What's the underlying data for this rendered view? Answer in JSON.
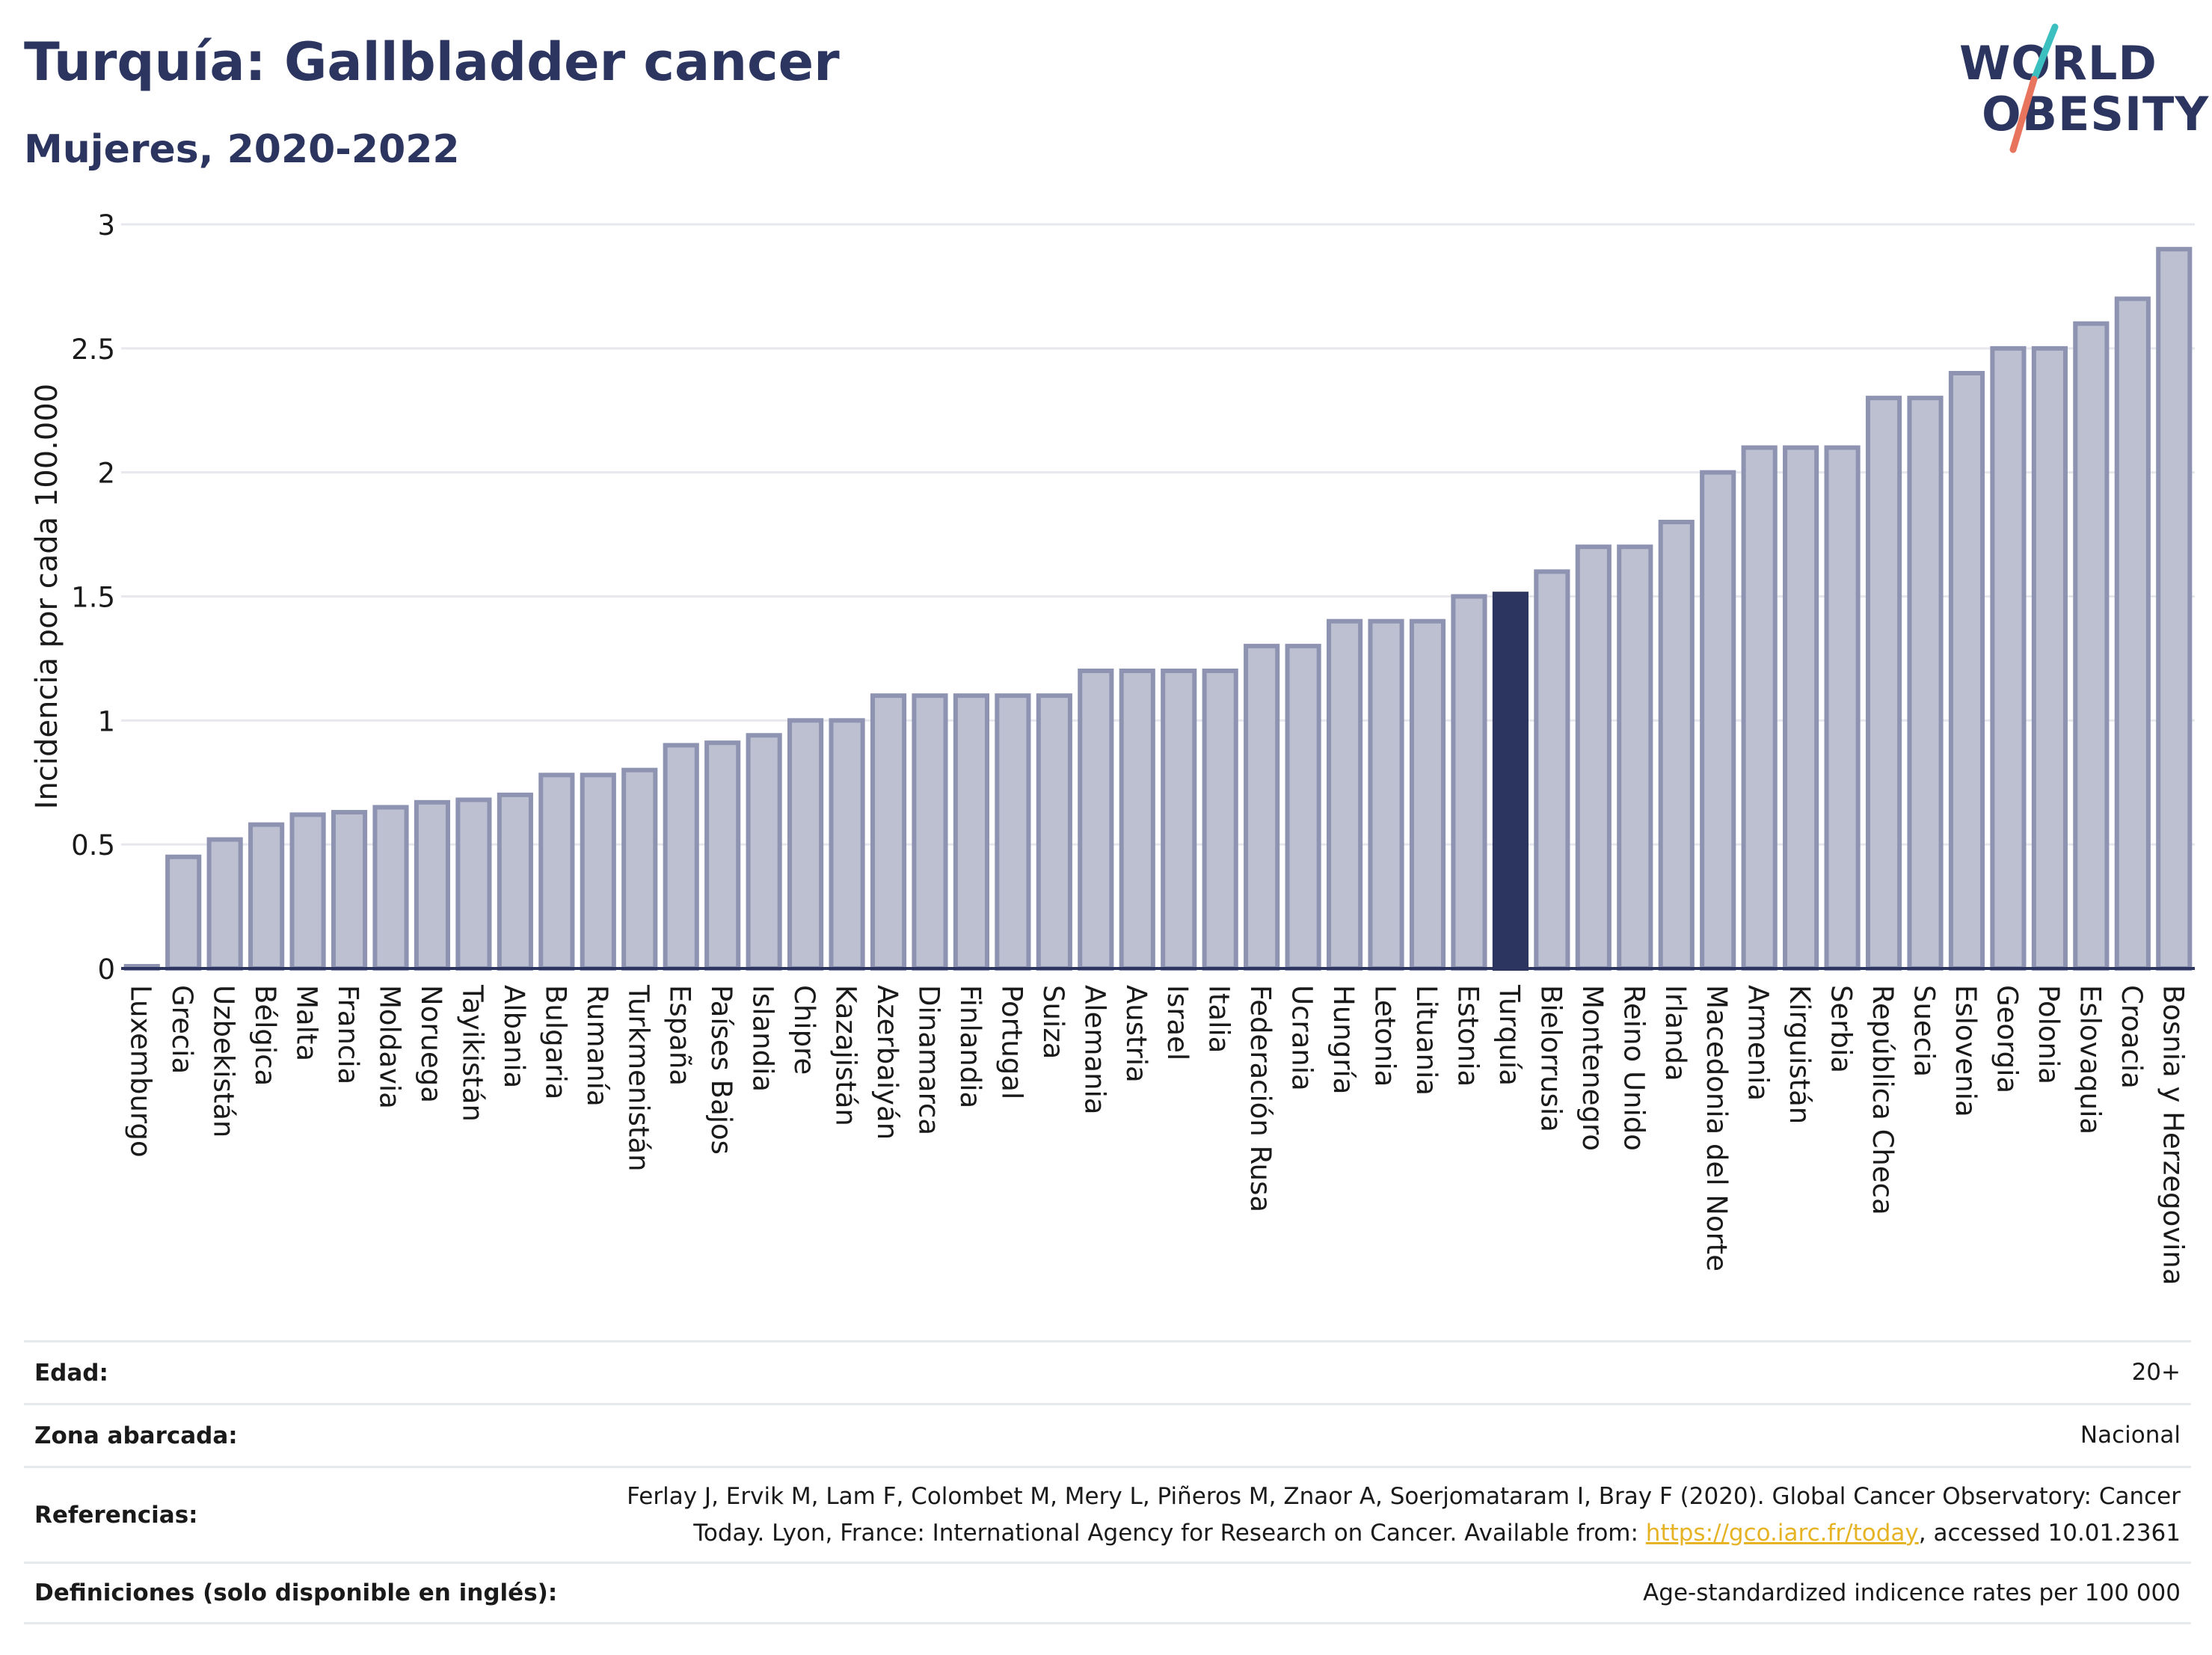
{
  "header": {
    "title": "Turquía: Gallbladder cancer",
    "subtitle": "Mujeres, 2020-2022"
  },
  "logo": {
    "line1": "WORLD",
    "line2": "OBESITY",
    "colors": {
      "text": "#2b355f",
      "slash_top": "#3bbfbf",
      "slash_bottom": "#e8745e"
    }
  },
  "colors": {
    "bar": "#bcc0d0",
    "bar_border": "#8d93b0",
    "highlight": "#2b355f",
    "grid": "#e6e8ee",
    "axis": "#2b355f"
  },
  "chart_data": {
    "type": "bar",
    "ylabel": "Incidencia por cada 100.000",
    "ylim": [
      0,
      3
    ],
    "yticks": [
      "0",
      "0.5",
      "1",
      "1.5",
      "2",
      "2.5",
      "3"
    ],
    "grid": true,
    "highlight": "Turquía",
    "categories": [
      "Luxemburgo",
      "Grecia",
      "Uzbekistán",
      "Bélgica",
      "Malta",
      "Francia",
      "Moldavia",
      "Noruega",
      "Tayikistán",
      "Albania",
      "Bulgaria",
      "Rumanía",
      "Turkmenistán",
      "España",
      "Países Bajos",
      "Islandia",
      "Chipre",
      "Kazajistán",
      "Azerbaiyán",
      "Dinamarca",
      "Finlandia",
      "Portugal",
      "Suiza",
      "Alemania",
      "Austria",
      "Israel",
      "Italia",
      "Federación Rusa",
      "Ucrania",
      "Hungría",
      "Letonia",
      "Lituania",
      "Estonia",
      "Turquía",
      "Bielorrusia",
      "Montenegro",
      "Reino Unido",
      "Irlanda",
      "Macedonia del Norte",
      "Armenia",
      "Kirguistán",
      "Serbia",
      "República Checa",
      "Suecia",
      "Eslovenia",
      "Georgia",
      "Polonia",
      "Eslovaquia",
      "Croacia",
      "Bosnia y Herzegovina"
    ],
    "values": [
      0.0,
      0.45,
      0.52,
      0.58,
      0.62,
      0.63,
      0.65,
      0.67,
      0.68,
      0.7,
      0.78,
      0.78,
      0.8,
      0.9,
      0.91,
      0.94,
      1.0,
      1.0,
      1.1,
      1.1,
      1.1,
      1.1,
      1.1,
      1.2,
      1.2,
      1.2,
      1.2,
      1.3,
      1.3,
      1.4,
      1.4,
      1.4,
      1.5,
      1.51,
      1.6,
      1.7,
      1.7,
      1.8,
      2.0,
      2.1,
      2.1,
      2.1,
      2.3,
      2.3,
      2.4,
      2.5,
      2.5,
      2.6,
      2.7,
      2.9
    ]
  },
  "meta": [
    {
      "key": "Edad:",
      "value": "20+"
    },
    {
      "key": "Zona abarcada:",
      "value": "Nacional"
    },
    {
      "key": "Referencias:",
      "line1": "Ferlay J, Ervik M, Lam F, Colombet M, Mery L, Piñeros M, Znaor A, Soerjomataram I, Bray F (2020). Global Cancer Observatory: Cancer",
      "line2_pre": "Today. Lyon, France: International Agency for Research on Cancer. Available from: ",
      "link": "https://gco.iarc.fr/today",
      "line2_post": ", accessed 10.01.2361"
    },
    {
      "key": "Definiciones (solo disponible en inglés):",
      "value": "Age-standardized indicence rates per 100 000"
    }
  ]
}
